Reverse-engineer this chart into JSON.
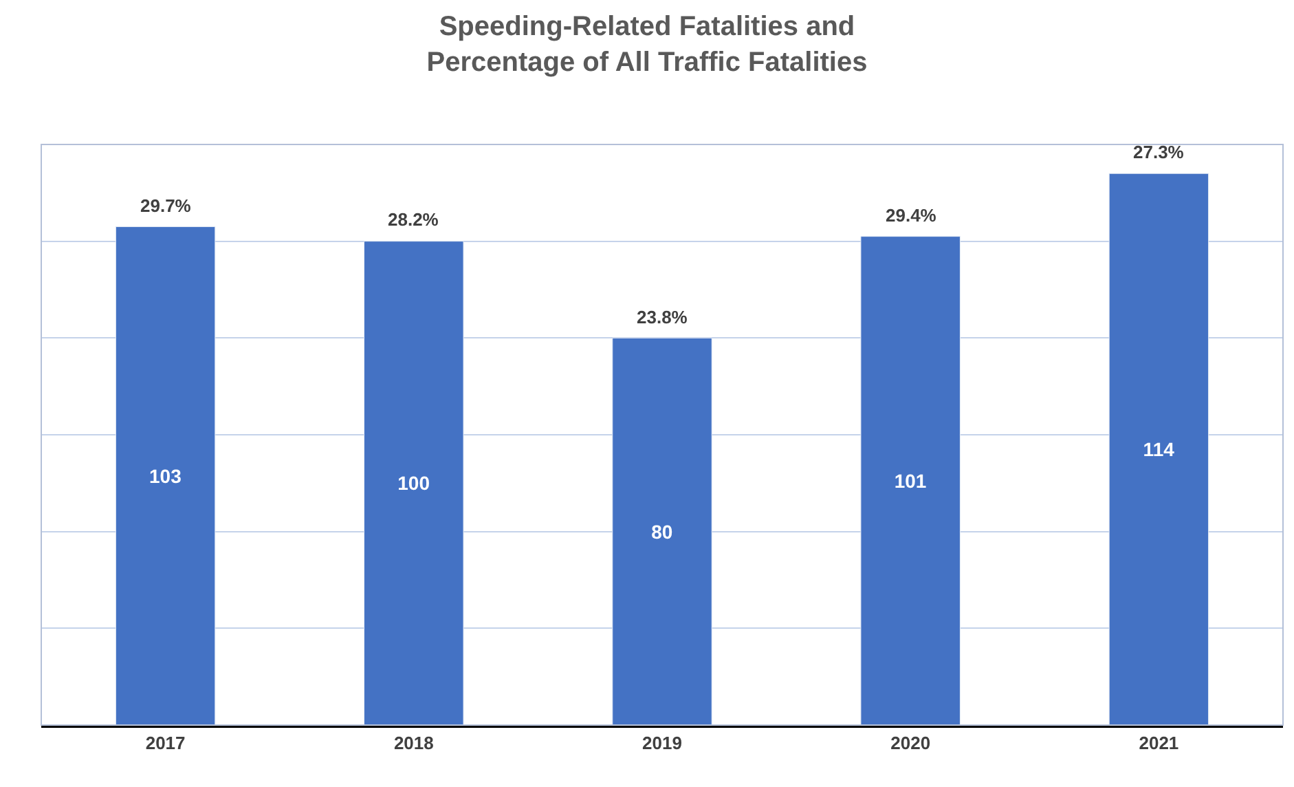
{
  "chart_data": {
    "type": "bar",
    "title": "Speeding-Related Fatalities and\nPercentage of All Traffic Fatalities",
    "categories": [
      "2017",
      "2018",
      "2019",
      "2020",
      "2021"
    ],
    "values": [
      103,
      100,
      80,
      101,
      114
    ],
    "color": "#4472c4",
    "data_labels": true,
    "ylim": [
      0,
      120
    ],
    "yticks": [
      {
        "value": 0,
        "label": null
      },
      {
        "value": 20,
        "label": null
      },
      {
        "value": 40,
        "label": null
      },
      {
        "value": 60,
        "label": null
      },
      {
        "value": 80,
        "label": null
      },
      {
        "value": 100,
        "label": null
      },
      {
        "value": 120,
        "label": null
      }
    ],
    "tick_labels": "x",
    "grid": "y",
    "annotations": [
      {
        "text": "29.7%",
        "x": "2017",
        "y": 103
      },
      {
        "text": "28.2%",
        "x": "2018",
        "y": 100
      },
      {
        "text": "23.8%",
        "x": "2019",
        "y": 80
      },
      {
        "text": "29.4%",
        "x": "2020",
        "y": 101
      },
      {
        "text": "27.3%",
        "x": "2021",
        "y": 114
      }
    ]
  }
}
